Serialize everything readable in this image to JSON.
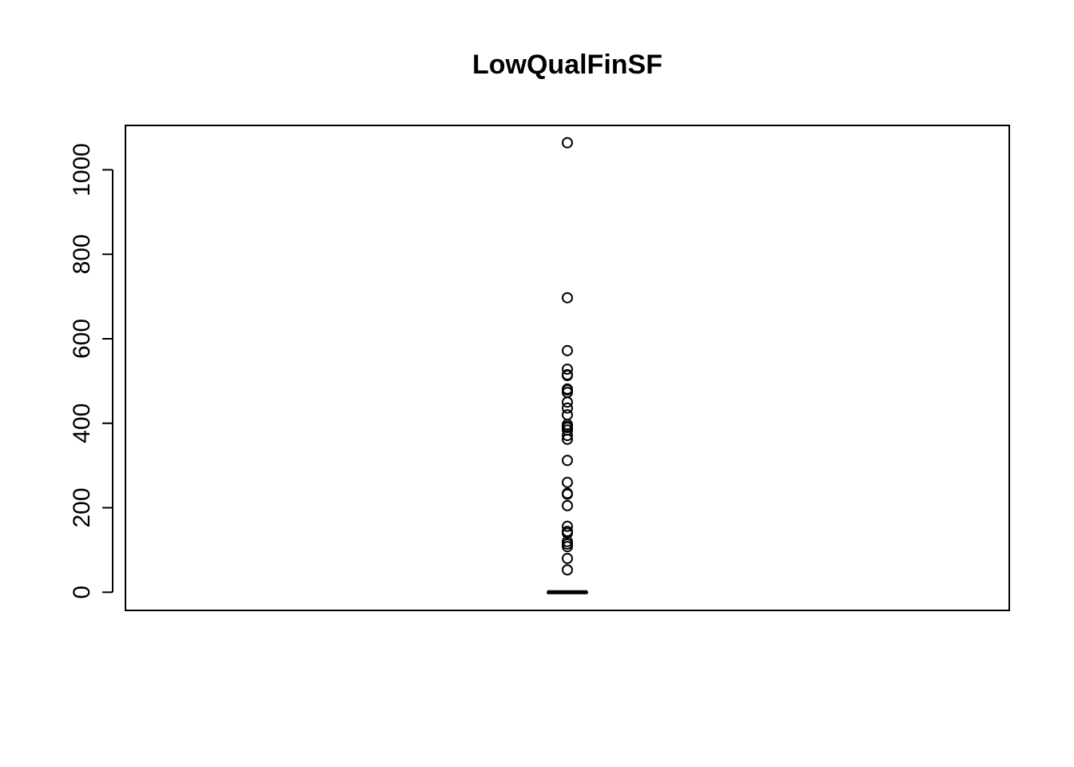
{
  "chart_data": {
    "type": "boxplot",
    "title": "LowQualFinSF",
    "xlabel": "",
    "ylabel": "",
    "ylim": [
      -43,
      1105
    ],
    "y_ticks": [
      0,
      200,
      400,
      600,
      800,
      1000
    ],
    "y_tick_labels": [
      "0",
      "200",
      "400",
      "600",
      "800",
      "1000"
    ],
    "grid": false,
    "legend": "none",
    "box": {
      "min": 0,
      "q1": 0,
      "median": 0,
      "q3": 0,
      "max": 0
    },
    "outliers": [
      1064,
      697,
      572,
      528,
      515,
      513,
      481,
      479,
      473,
      450,
      436,
      420,
      397,
      392,
      390,
      384,
      371,
      362,
      312,
      260,
      234,
      232,
      205,
      156,
      144,
      140,
      120,
      114,
      108,
      80,
      53
    ],
    "colors": {
      "stroke": "#000000",
      "background": "#ffffff"
    }
  }
}
